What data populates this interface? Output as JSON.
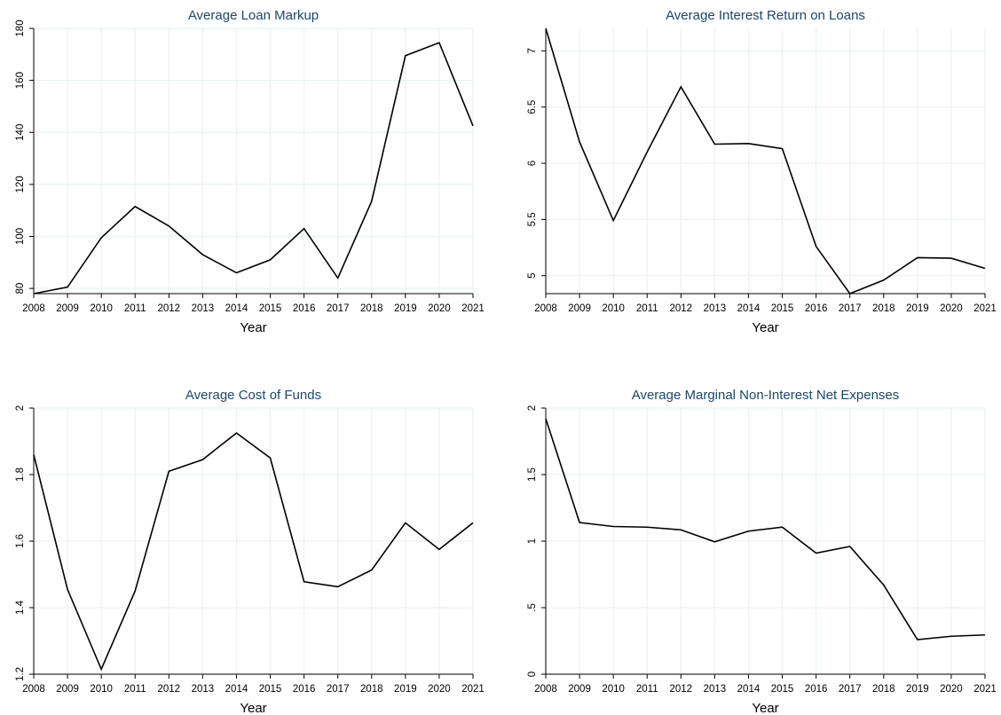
{
  "chart_data": [
    {
      "type": "line",
      "title": "Average Loan Markup",
      "x_label": "Year",
      "x": [
        2008,
        2009,
        2010,
        2011,
        2012,
        2013,
        2014,
        2015,
        2016,
        2017,
        2018,
        2019,
        2020,
        2021
      ],
      "series": [
        {
          "color": "#000000",
          "values": [
            78,
            80.5,
            99.5,
            111.5,
            104,
            93,
            86,
            91,
            103,
            84,
            113.5,
            169.5,
            174.5,
            142.5
          ]
        }
      ],
      "xlim": [
        2008,
        2021
      ],
      "xticks": [
        2008,
        2009,
        2010,
        2011,
        2012,
        2013,
        2014,
        2015,
        2016,
        2017,
        2018,
        2019,
        2020,
        2021
      ],
      "ylim": [
        78,
        180
      ],
      "yticks": [
        80,
        100,
        120,
        140,
        160,
        180
      ],
      "grid": true
    },
    {
      "type": "line",
      "title": "Average Interest Return on Loans",
      "x_label": "Year",
      "x": [
        2008,
        2009,
        2010,
        2011,
        2012,
        2013,
        2014,
        2015,
        2016,
        2017,
        2018,
        2019,
        2020,
        2021
      ],
      "series": [
        {
          "color": "#000000",
          "values": [
            7.2,
            6.19,
            5.49,
            6.1,
            6.68,
            6.17,
            6.175,
            6.13,
            5.26,
            4.84,
            4.96,
            5.16,
            5.155,
            5.065
          ]
        }
      ],
      "xlim": [
        2008,
        2021
      ],
      "xticks": [
        2008,
        2009,
        2010,
        2011,
        2012,
        2013,
        2014,
        2015,
        2016,
        2017,
        2018,
        2019,
        2020,
        2021
      ],
      "ylim": [
        4.84,
        7.2
      ],
      "yticks": [
        5,
        5.5,
        6,
        6.5,
        7
      ],
      "grid": true
    },
    {
      "type": "line",
      "title": "Average Cost of Funds",
      "x_label": "Year",
      "x": [
        2008,
        2009,
        2010,
        2011,
        2012,
        2013,
        2014,
        2015,
        2016,
        2017,
        2018,
        2019,
        2020,
        2021
      ],
      "series": [
        {
          "color": "#000000",
          "values": [
            1.86,
            1.455,
            1.215,
            1.45,
            1.81,
            1.845,
            1.925,
            1.85,
            1.478,
            1.463,
            1.513,
            1.655,
            1.575,
            1.655
          ]
        }
      ],
      "xlim": [
        2008,
        2021
      ],
      "xticks": [
        2008,
        2009,
        2010,
        2011,
        2012,
        2013,
        2014,
        2015,
        2016,
        2017,
        2018,
        2019,
        2020,
        2021
      ],
      "ylim": [
        1.2,
        2
      ],
      "yticks": [
        1.2,
        1.4,
        1.6,
        1.8,
        2
      ],
      "grid": true
    },
    {
      "type": "line",
      "title": "Average Marginal Non-Interest Net Expenses",
      "x_label": "Year",
      "x": [
        2008,
        2009,
        2010,
        2011,
        2012,
        2013,
        2014,
        2015,
        2016,
        2017,
        2018,
        2019,
        2020,
        2021
      ],
      "series": [
        {
          "color": "#000000",
          "values": [
            1.92,
            1.14,
            1.11,
            1.105,
            1.085,
            0.995,
            1.075,
            1.105,
            0.91,
            0.96,
            0.67,
            0.26,
            0.285,
            0.295
          ]
        }
      ],
      "xlim": [
        2008,
        2021
      ],
      "xticks": [
        2008,
        2009,
        2010,
        2011,
        2012,
        2013,
        2014,
        2015,
        2016,
        2017,
        2018,
        2019,
        2020,
        2021
      ],
      "ylim": [
        0,
        2
      ],
      "yticks": [
        0,
        {
          "value": 0.5,
          "label": ".5"
        },
        1,
        1.5,
        2
      ],
      "grid": true
    }
  ]
}
